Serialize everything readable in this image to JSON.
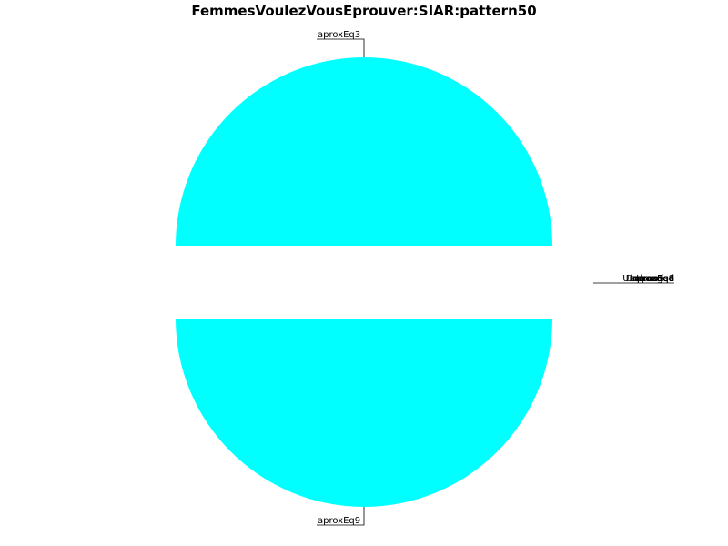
{
  "chart_data": {
    "type": "pie",
    "title": "FemmesVoulezVousEprouver:SIAR:pattern50",
    "slice_color": "#00ffff",
    "slices": [
      {
        "label": "aproxEq3",
        "value": 50,
        "exploded": true
      },
      {
        "label": "aproxEq9",
        "value": 50,
        "exploded": true
      },
      {
        "label": "aproxEq4",
        "value": 0
      },
      {
        "label": "aproxEq8",
        "value": 0
      },
      {
        "label": "imprecise",
        "value": 0
      },
      {
        "label": "Increased",
        "value": 0
      },
      {
        "label": "Decreased",
        "value": 0
      },
      {
        "label": "Unchanged",
        "value": 0
      },
      {
        "label": "Inverted",
        "value": 0
      }
    ]
  }
}
